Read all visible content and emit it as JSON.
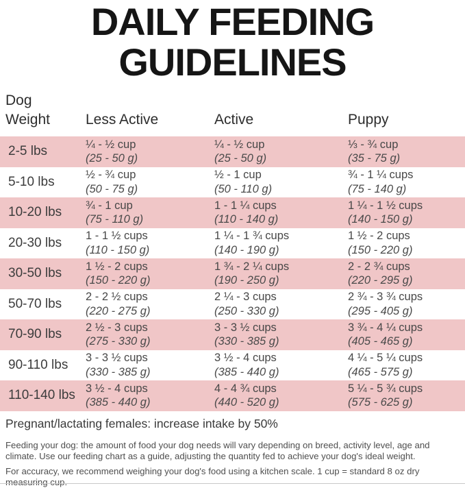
{
  "title": {
    "line1": "DAILY FEEDING",
    "line2": "GUIDELINES"
  },
  "table": {
    "headers": {
      "weight_line1": "Dog",
      "weight_line2": "Weight",
      "less_active": "Less Active",
      "active": "Active",
      "puppy": "Puppy"
    },
    "rows": [
      {
        "weight": "2-5 lbs",
        "less_active": {
          "cups": "¼ - ½ cup",
          "grams": "(25 - 50 g)"
        },
        "active": {
          "cups": "¼ - ½ cup",
          "grams": "(25 - 50 g)"
        },
        "puppy": {
          "cups": "⅓ - ¾ cup",
          "grams": "(35 - 75 g)"
        }
      },
      {
        "weight": "5-10 lbs",
        "less_active": {
          "cups": "½ - ¾ cup",
          "grams": "(50 - 75 g)"
        },
        "active": {
          "cups": "½ - 1 cup",
          "grams": "(50 - 110 g)"
        },
        "puppy": {
          "cups": "¾ - 1 ¼ cups",
          "grams": "(75 - 140 g)"
        }
      },
      {
        "weight": "10-20 lbs",
        "less_active": {
          "cups": "¾ - 1 cup",
          "grams": "(75 - 110 g)"
        },
        "active": {
          "cups": "1 - 1 ¼ cups",
          "grams": "(110 - 140 g)"
        },
        "puppy": {
          "cups": "1 ¼ - 1 ½ cups",
          "grams": "(140 - 150 g)"
        }
      },
      {
        "weight": "20-30 lbs",
        "less_active": {
          "cups": "1 - 1 ½ cups",
          "grams": "(110 - 150 g)"
        },
        "active": {
          "cups": "1 ¼ - 1 ¾ cups",
          "grams": "(140 - 190 g)"
        },
        "puppy": {
          "cups": "1 ½ - 2 cups",
          "grams": "(150 - 220 g)"
        }
      },
      {
        "weight": "30-50 lbs",
        "less_active": {
          "cups": "1 ½ - 2 cups",
          "grams": "(150 - 220 g)"
        },
        "active": {
          "cups": "1 ¾ - 2 ¼ cups",
          "grams": "(190 - 250 g)"
        },
        "puppy": {
          "cups": "2 - 2 ¾ cups",
          "grams": "(220 - 295 g)"
        }
      },
      {
        "weight": "50-70 lbs",
        "less_active": {
          "cups": "2 - 2 ½ cups",
          "grams": "(220 - 275 g)"
        },
        "active": {
          "cups": "2 ¼ - 3 cups",
          "grams": "(250 - 330 g)"
        },
        "puppy": {
          "cups": "2 ¾ - 3 ¾ cups",
          "grams": "(295 - 405 g)"
        }
      },
      {
        "weight": "70-90 lbs",
        "less_active": {
          "cups": "2 ½ - 3 cups",
          "grams": "(275 - 330 g)"
        },
        "active": {
          "cups": "3 - 3 ½ cups",
          "grams": "(330 - 385 g)"
        },
        "puppy": {
          "cups": "3 ¾ - 4 ¼ cups",
          "grams": "(405 - 465 g)"
        }
      },
      {
        "weight": "90-110 lbs",
        "less_active": {
          "cups": "3 - 3 ½ cups",
          "grams": "(330 - 385 g)"
        },
        "active": {
          "cups": "3 ½ - 4 cups",
          "grams": "(385 - 440 g)"
        },
        "puppy": {
          "cups": "4 ¼ - 5 ¼ cups",
          "grams": "(465 - 575 g)"
        }
      },
      {
        "weight": "110-140 lbs",
        "less_active": {
          "cups": "3 ½ - 4 cups",
          "grams": "(385 - 440 g)"
        },
        "active": {
          "cups": "4 - 4 ¾ cups",
          "grams": "(440 - 520 g)"
        },
        "puppy": {
          "cups": "5 ¼ - 5 ¾ cups",
          "grams": "(575 - 625 g)"
        }
      }
    ]
  },
  "notes": {
    "pregnant": "Pregnant/lactating females: increase intake by 50%",
    "feeding": "Feeding your dog: the amount of food your dog needs will vary depending on breed, activity level, age and\nclimate. Use our feeding chart as a guide, adjusting the quantity fed to achieve your dog's ideal weight.",
    "accuracy": "For accuracy, we recommend weighing your dog's food using a kitchen scale. 1 cup = standard 8 oz dry\nmeasuring cup."
  },
  "colors": {
    "row_pink": "#f0c6c7",
    "title_black": "#151515",
    "text_gray": "#474747"
  }
}
